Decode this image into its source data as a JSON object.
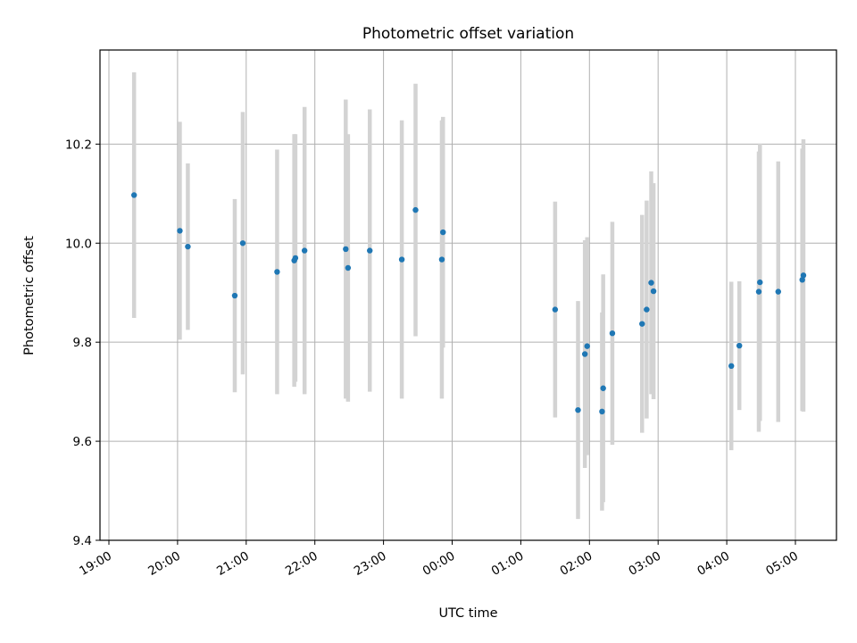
{
  "chart_data": {
    "type": "scatter",
    "title": "Photometric offset variation",
    "xlabel": "UTC time",
    "ylabel": "Photometric offset",
    "x_axis": {
      "kind": "time",
      "ticks": [
        "19:00",
        "20:00",
        "21:00",
        "22:00",
        "23:00",
        "00:00",
        "01:00",
        "02:00",
        "03:00",
        "04:00",
        "05:00"
      ],
      "start": "19:00",
      "end": "05:40"
    },
    "ylim": [
      9.4,
      10.39
    ],
    "yticks": [
      "9.4",
      "9.6",
      "9.8",
      "10.0",
      "10.2"
    ],
    "grid": true,
    "legend": "none",
    "colors": {
      "point": "#1f77b4",
      "errorbar": "#d3d3d3",
      "grid": "#b0b0b0",
      "axis": "#000000"
    },
    "points": [
      {
        "t": "19:22",
        "y": 10.097,
        "err": 0.248
      },
      {
        "t": "20:02",
        "y": 10.025,
        "err": 0.22
      },
      {
        "t": "20:09",
        "y": 9.993,
        "err": 0.168
      },
      {
        "t": "20:50",
        "y": 9.894,
        "err": 0.195
      },
      {
        "t": "20:57",
        "y": 10.0,
        "err": 0.265
      },
      {
        "t": "21:27",
        "y": 9.942,
        "err": 0.247
      },
      {
        "t": "21:42",
        "y": 9.965,
        "err": 0.255
      },
      {
        "t": "21:43",
        "y": 9.97,
        "err": 0.25
      },
      {
        "t": "21:51",
        "y": 9.985,
        "err": 0.29
      },
      {
        "t": "22:27",
        "y": 9.988,
        "err": 0.302
      },
      {
        "t": "22:29",
        "y": 9.95,
        "err": 0.27
      },
      {
        "t": "22:48",
        "y": 9.985,
        "err": 0.285
      },
      {
        "t": "23:16",
        "y": 9.967,
        "err": 0.281
      },
      {
        "t": "23:28",
        "y": 10.067,
        "err": 0.255
      },
      {
        "t": "23:51",
        "y": 9.967,
        "err": 0.281
      },
      {
        "t": "23:52",
        "y": 10.022,
        "err": 0.233
      },
      {
        "t": "01:30",
        "y": 9.866,
        "err": 0.218
      },
      {
        "t": "01:50",
        "y": 9.663,
        "err": 0.22
      },
      {
        "t": "01:56",
        "y": 9.776,
        "err": 0.23
      },
      {
        "t": "01:58",
        "y": 9.792,
        "err": 0.22
      },
      {
        "t": "02:11",
        "y": 9.66,
        "err": 0.2
      },
      {
        "t": "02:12",
        "y": 9.707,
        "err": 0.23
      },
      {
        "t": "02:20",
        "y": 9.818,
        "err": 0.225
      },
      {
        "t": "02:46",
        "y": 9.837,
        "err": 0.22
      },
      {
        "t": "02:50",
        "y": 9.866,
        "err": 0.22
      },
      {
        "t": "02:54",
        "y": 9.92,
        "err": 0.225
      },
      {
        "t": "02:56",
        "y": 9.903,
        "err": 0.218
      },
      {
        "t": "04:04",
        "y": 9.752,
        "err": 0.17
      },
      {
        "t": "04:11",
        "y": 9.793,
        "err": 0.13
      },
      {
        "t": "04:28",
        "y": 9.902,
        "err": 0.283
      },
      {
        "t": "04:29",
        "y": 9.921,
        "err": 0.28
      },
      {
        "t": "04:45",
        "y": 9.902,
        "err": 0.263
      },
      {
        "t": "05:06",
        "y": 9.926,
        "err": 0.265
      },
      {
        "t": "05:07",
        "y": 9.935,
        "err": 0.275
      }
    ]
  }
}
